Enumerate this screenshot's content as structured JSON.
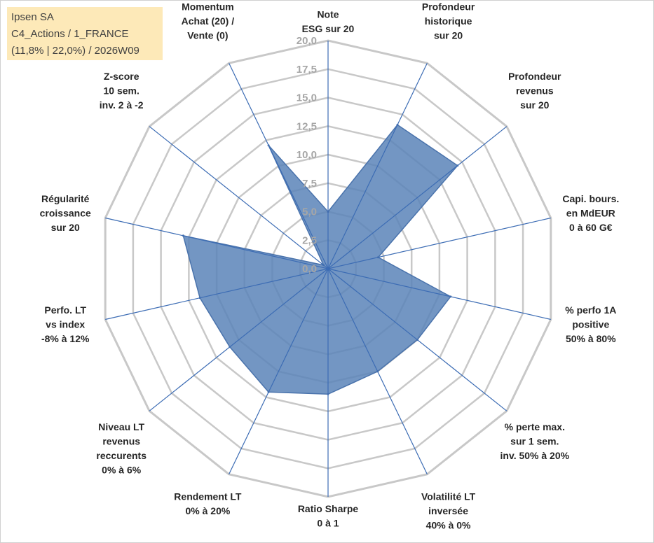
{
  "info": {
    "line1": "Ipsen SA",
    "line2": "C4_Actions / 1_FRANCE",
    "line3": "(11,8% | 22,0%) / 2026W09"
  },
  "colors": {
    "fill": "#5b84b8",
    "stroke": "#4a73ac",
    "spoke": "#3c6cb4",
    "grid": "#c8c8c8",
    "tick": "#a6a6a6"
  },
  "chart_data": {
    "type": "radar",
    "rmin": 0,
    "rmax": 20,
    "ticks": [
      "0,0",
      "2,5",
      "5,0",
      "7,5",
      "10,0",
      "12,5",
      "15,0",
      "17,5",
      "20,0"
    ],
    "axes": [
      {
        "label": [
          "Note",
          "ESG sur 20"
        ],
        "value": 5.0
      },
      {
        "label": [
          "Profondeur",
          "historique",
          "sur 20"
        ],
        "value": 14.0
      },
      {
        "label": [
          "Profondeur",
          "revenus",
          "sur 20"
        ],
        "value": 14.5
      },
      {
        "label": [
          "Capi. bours.",
          "en MdEUR",
          "0 à 60 G€"
        ],
        "value": 4.5
      },
      {
        "label": [
          "% perfo 1A",
          "positive",
          "50% à 80%"
        ],
        "value": 11.0
      },
      {
        "label": [
          "% perte max.",
          "sur 1 sem.",
          "inv. 50% à 20%"
        ],
        "value": 10.0
      },
      {
        "label": [
          "Volatilité LT",
          "inversée",
          "40% à 0%"
        ],
        "value": 10.0
      },
      {
        "label": [
          "Ratio Sharpe",
          "0 à 1"
        ],
        "value": 11.0
      },
      {
        "label": [
          "Rendement LT",
          "0% à 20%"
        ],
        "value": 12.0
      },
      {
        "label": [
          "Niveau LT",
          "revenus",
          "reccurents",
          "0% à 6%"
        ],
        "value": 11.0
      },
      {
        "label": [
          "Perfo. LT",
          "vs index",
          "-8% à 12%"
        ],
        "value": 11.5
      },
      {
        "label": [
          "Régularité",
          "croissance",
          "sur 20"
        ],
        "value": 13.0
      },
      {
        "label": [
          "Z-score",
          "10 sem.",
          "inv. 2 à -2"
        ],
        "value": 0.5
      },
      {
        "label": [
          "Momentum",
          "Achat (20) /",
          "Vente (0)"
        ],
        "value": 12.0
      }
    ]
  }
}
